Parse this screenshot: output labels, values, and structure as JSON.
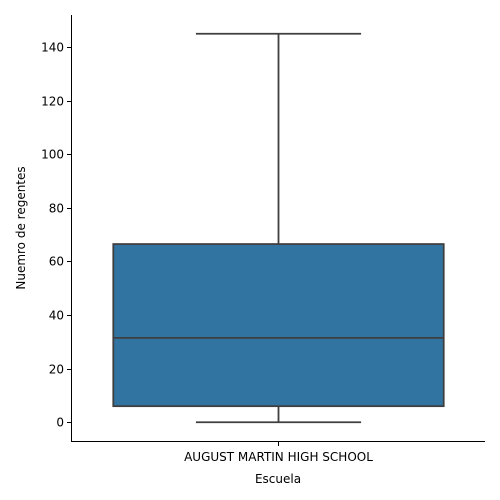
{
  "chart_data": {
    "type": "box",
    "xlabel": "Escuela",
    "ylabel": "Nuemro de regentes",
    "categories": [
      "AUGUST MARTIN HIGH SCHOOL"
    ],
    "boxes": [
      {
        "category": "AUGUST MARTIN HIGH SCHOOL",
        "whisker_low": 0,
        "q1": 6,
        "median": 31.5,
        "q3": 66.5,
        "whisker_high": 145
      }
    ],
    "yticks": [
      0,
      20,
      40,
      60,
      80,
      100,
      120,
      140
    ],
    "ylim": [
      -7,
      152
    ],
    "grid": false,
    "box_color": "#3274a1",
    "line_color": "#3f3f3f"
  }
}
